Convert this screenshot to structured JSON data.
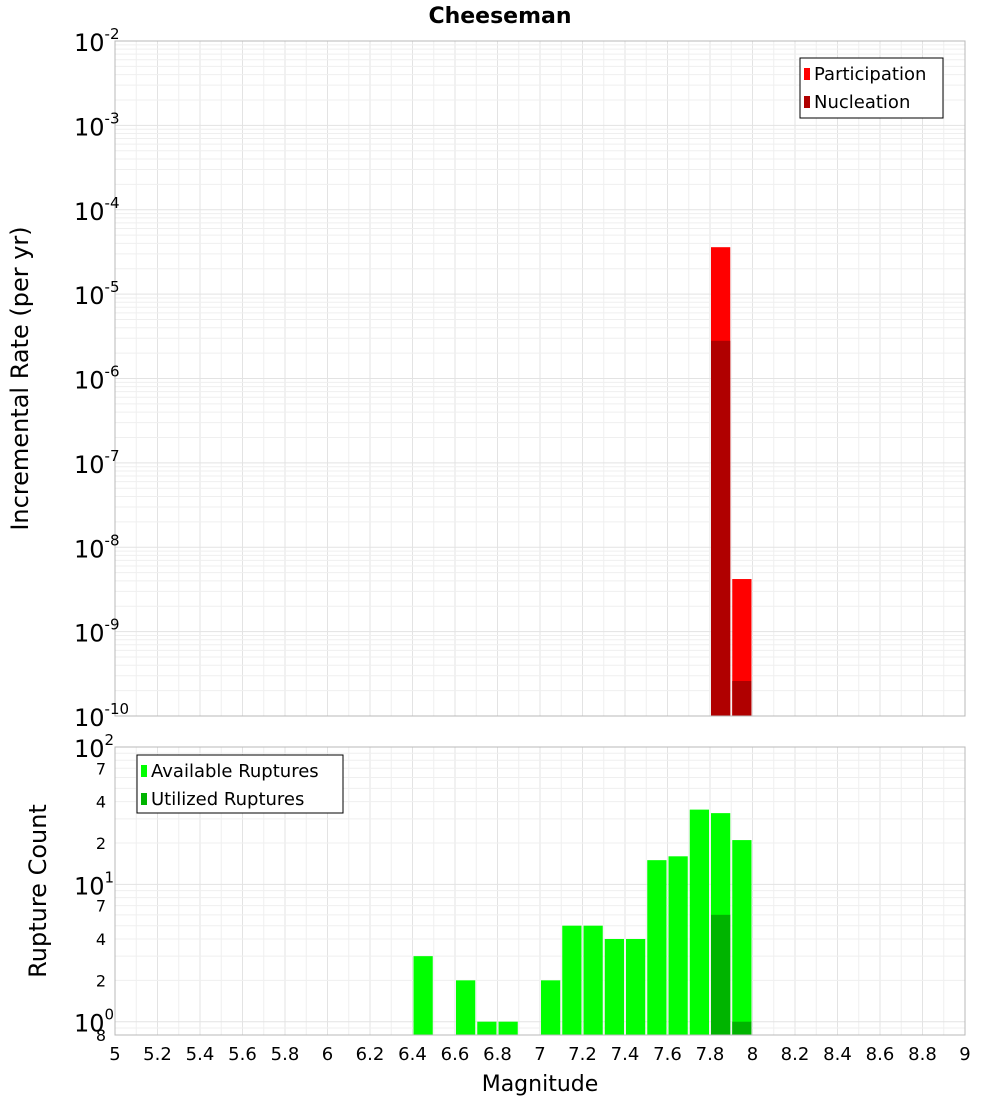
{
  "title": "Cheeseman",
  "xlabel": "Magnitude",
  "colors": {
    "participation": "#ff0000",
    "nucleation": "#b00000",
    "available": "#00ff00",
    "utilized": "#00b400"
  },
  "chart_data": [
    {
      "type": "bar",
      "ylabel": "Incremental Rate (per yr)",
      "yscale": "log",
      "ylim": [
        1e-10,
        0.01
      ],
      "xlim": [
        5,
        9
      ],
      "bin_width": 0.1,
      "legend_position": "top-right",
      "grid": true,
      "y_ticks": [
        {
          "mant": "10",
          "exp": "-2"
        },
        {
          "mant": "10",
          "exp": "-3"
        },
        {
          "mant": "10",
          "exp": "-4"
        },
        {
          "mant": "10",
          "exp": "-5"
        },
        {
          "mant": "10",
          "exp": "-6"
        },
        {
          "mant": "10",
          "exp": "-7"
        },
        {
          "mant": "10",
          "exp": "-8"
        },
        {
          "mant": "10",
          "exp": "-9"
        },
        {
          "mant": "10",
          "exp": "-10"
        }
      ],
      "series": [
        {
          "name": "Participation",
          "x": [
            7.85,
            7.95
          ],
          "values": [
            3.6e-05,
            4.2e-09
          ]
        },
        {
          "name": "Nucleation",
          "x": [
            7.85,
            7.95
          ],
          "values": [
            2.8e-06,
            2.6e-10
          ]
        }
      ]
    },
    {
      "type": "bar",
      "ylabel": "Rupture Count",
      "yscale": "log",
      "ylim": [
        0.8,
        100
      ],
      "xlim": [
        5,
        9
      ],
      "bin_width": 0.1,
      "legend_position": "top-left",
      "grid": true,
      "y_ticks": [
        {
          "mant": "10",
          "exp": "2",
          "major": true
        },
        {
          "label": "7"
        },
        {
          "label": "4"
        },
        {
          "label": "2"
        },
        {
          "mant": "10",
          "exp": "1",
          "major": true
        },
        {
          "label": "7"
        },
        {
          "label": "4"
        },
        {
          "label": "2"
        },
        {
          "mant": "10",
          "exp": "0",
          "major": true
        },
        {
          "label": "8"
        }
      ],
      "series": [
        {
          "name": "Available Ruptures",
          "x": [
            6.45,
            6.65,
            6.75,
            6.85,
            7.05,
            7.15,
            7.25,
            7.35,
            7.45,
            7.55,
            7.65,
            7.75,
            7.85,
            7.95
          ],
          "values": [
            3,
            2,
            1,
            1,
            2,
            5,
            5,
            4,
            4,
            15,
            16,
            35,
            33,
            21
          ]
        },
        {
          "name": "Utilized Ruptures",
          "x": [
            7.85,
            7.95
          ],
          "values": [
            6,
            1
          ]
        }
      ]
    }
  ],
  "x_ticks": [
    "5",
    "5.2",
    "5.4",
    "5.6",
    "5.8",
    "6",
    "6.2",
    "6.4",
    "6.6",
    "6.8",
    "7",
    "7.2",
    "7.4",
    "7.6",
    "7.8",
    "8",
    "8.2",
    "8.4",
    "8.6",
    "8.8",
    "9"
  ]
}
